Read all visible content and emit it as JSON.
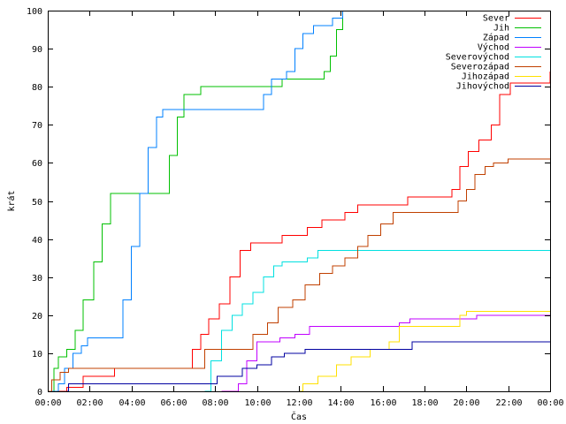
{
  "chart_data": {
    "type": "line",
    "title": "",
    "xlabel": "Čas",
    "ylabel": "krát",
    "xlim_hours": [
      0,
      24
    ],
    "ylim": [
      0,
      100
    ],
    "grid": false,
    "legend_position": "top-right",
    "x_ticks": [
      {
        "hour": 0,
        "label": "00:00"
      },
      {
        "hour": 2,
        "label": "02:00"
      },
      {
        "hour": 4,
        "label": "04:00"
      },
      {
        "hour": 6,
        "label": "06:00"
      },
      {
        "hour": 8,
        "label": "08:00"
      },
      {
        "hour": 10,
        "label": "10:00"
      },
      {
        "hour": 12,
        "label": "12:00"
      },
      {
        "hour": 14,
        "label": "14:00"
      },
      {
        "hour": 16,
        "label": "16:00"
      },
      {
        "hour": 18,
        "label": "18:00"
      },
      {
        "hour": 20,
        "label": "20:00"
      },
      {
        "hour": 22,
        "label": "22:00"
      },
      {
        "hour": 24,
        "label": "00:00"
      }
    ],
    "y_ticks": [
      0,
      10,
      20,
      30,
      40,
      50,
      60,
      70,
      80,
      90,
      100
    ],
    "series": [
      {
        "name": "Sever",
        "color": "#ff0000",
        "points": [
          [
            0.0,
            0
          ],
          [
            0.9,
            1
          ],
          [
            1.7,
            4
          ],
          [
            3.2,
            6
          ],
          [
            6.7,
            6
          ],
          [
            6.9,
            11
          ],
          [
            7.3,
            15
          ],
          [
            7.7,
            19
          ],
          [
            8.2,
            23
          ],
          [
            8.7,
            30
          ],
          [
            9.2,
            37
          ],
          [
            9.7,
            39
          ],
          [
            11.2,
            41
          ],
          [
            12.4,
            43
          ],
          [
            13.1,
            45
          ],
          [
            14.2,
            47
          ],
          [
            14.8,
            49
          ],
          [
            17.2,
            51
          ],
          [
            19.3,
            53
          ],
          [
            19.7,
            59
          ],
          [
            20.1,
            63
          ],
          [
            20.6,
            66
          ],
          [
            21.2,
            70
          ],
          [
            21.6,
            78
          ],
          [
            22.1,
            81
          ],
          [
            23.8,
            81
          ],
          [
            24.0,
            84
          ]
        ]
      },
      {
        "name": "Jih",
        "color": "#00c000",
        "points": [
          [
            0.0,
            0
          ],
          [
            0.3,
            6
          ],
          [
            0.5,
            9
          ],
          [
            0.9,
            11
          ],
          [
            1.3,
            16
          ],
          [
            1.7,
            24
          ],
          [
            2.2,
            34
          ],
          [
            2.6,
            44
          ],
          [
            3.0,
            52
          ],
          [
            5.5,
            52
          ],
          [
            5.8,
            62
          ],
          [
            6.2,
            72
          ],
          [
            6.5,
            78
          ],
          [
            7.3,
            80
          ],
          [
            10.8,
            80
          ],
          [
            11.2,
            82
          ],
          [
            12.8,
            82
          ],
          [
            13.2,
            84
          ],
          [
            13.5,
            88
          ],
          [
            13.8,
            95
          ],
          [
            14.1,
            100
          ]
        ]
      },
      {
        "name": "Západ",
        "color": "#0080ff",
        "points": [
          [
            0.0,
            0
          ],
          [
            0.5,
            2
          ],
          [
            0.8,
            6
          ],
          [
            1.2,
            10
          ],
          [
            1.6,
            12
          ],
          [
            1.9,
            14
          ],
          [
            3.2,
            14
          ],
          [
            3.6,
            24
          ],
          [
            4.0,
            38
          ],
          [
            4.4,
            52
          ],
          [
            4.8,
            64
          ],
          [
            5.2,
            72
          ],
          [
            5.5,
            74
          ],
          [
            9.8,
            74
          ],
          [
            10.3,
            78
          ],
          [
            10.7,
            82
          ],
          [
            11.4,
            84
          ],
          [
            11.8,
            90
          ],
          [
            12.2,
            94
          ],
          [
            12.7,
            96
          ],
          [
            13.6,
            98
          ],
          [
            14.1,
            100
          ]
        ]
      },
      {
        "name": "Východ",
        "color": "#c000ff",
        "points": [
          [
            8.3,
            0
          ],
          [
            9.1,
            2
          ],
          [
            9.5,
            8
          ],
          [
            10.0,
            13
          ],
          [
            11.1,
            14
          ],
          [
            11.8,
            15
          ],
          [
            12.5,
            17
          ],
          [
            16.8,
            18
          ],
          [
            17.3,
            19
          ],
          [
            20.5,
            20
          ],
          [
            24.0,
            20
          ]
        ]
      },
      {
        "name": "Severovýchod",
        "color": "#00e0e0",
        "points": [
          [
            7.5,
            0
          ],
          [
            7.8,
            8
          ],
          [
            8.3,
            16
          ],
          [
            8.8,
            20
          ],
          [
            9.3,
            23
          ],
          [
            9.8,
            26
          ],
          [
            10.3,
            30
          ],
          [
            10.8,
            33
          ],
          [
            11.2,
            34
          ],
          [
            12.4,
            35
          ],
          [
            12.9,
            37
          ],
          [
            24.0,
            37
          ]
        ]
      },
      {
        "name": "Severozápad",
        "color": "#c04000",
        "points": [
          [
            0.0,
            0
          ],
          [
            0.2,
            3
          ],
          [
            0.6,
            5
          ],
          [
            1.0,
            6
          ],
          [
            7.2,
            6
          ],
          [
            7.5,
            11
          ],
          [
            9.2,
            11
          ],
          [
            9.8,
            15
          ],
          [
            10.5,
            18
          ],
          [
            11.0,
            22
          ],
          [
            11.7,
            24
          ],
          [
            12.3,
            28
          ],
          [
            13.0,
            31
          ],
          [
            13.6,
            33
          ],
          [
            14.2,
            35
          ],
          [
            14.8,
            38
          ],
          [
            15.3,
            41
          ],
          [
            15.9,
            44
          ],
          [
            16.5,
            47
          ],
          [
            19.2,
            47
          ],
          [
            19.6,
            50
          ],
          [
            20.0,
            53
          ],
          [
            20.4,
            57
          ],
          [
            20.9,
            59
          ],
          [
            21.3,
            60
          ],
          [
            22.0,
            61
          ],
          [
            24.0,
            61
          ]
        ]
      },
      {
        "name": "Jihozápad",
        "color": "#ffe000",
        "points": [
          [
            12.0,
            0
          ],
          [
            12.2,
            2
          ],
          [
            12.9,
            4
          ],
          [
            13.8,
            7
          ],
          [
            14.5,
            9
          ],
          [
            15.4,
            11
          ],
          [
            16.3,
            13
          ],
          [
            16.8,
            17
          ],
          [
            19.4,
            17
          ],
          [
            19.7,
            20
          ],
          [
            20.0,
            21
          ],
          [
            24.0,
            21
          ]
        ]
      },
      {
        "name": "Jihovýchod",
        "color": "#0000a0",
        "points": [
          [
            0.9,
            0
          ],
          [
            1.0,
            2
          ],
          [
            7.6,
            2
          ],
          [
            8.1,
            4
          ],
          [
            9.3,
            6
          ],
          [
            10.0,
            7
          ],
          [
            10.7,
            9
          ],
          [
            11.3,
            10
          ],
          [
            12.3,
            11
          ],
          [
            16.8,
            11
          ],
          [
            17.4,
            13
          ],
          [
            24.0,
            13
          ]
        ]
      }
    ]
  }
}
